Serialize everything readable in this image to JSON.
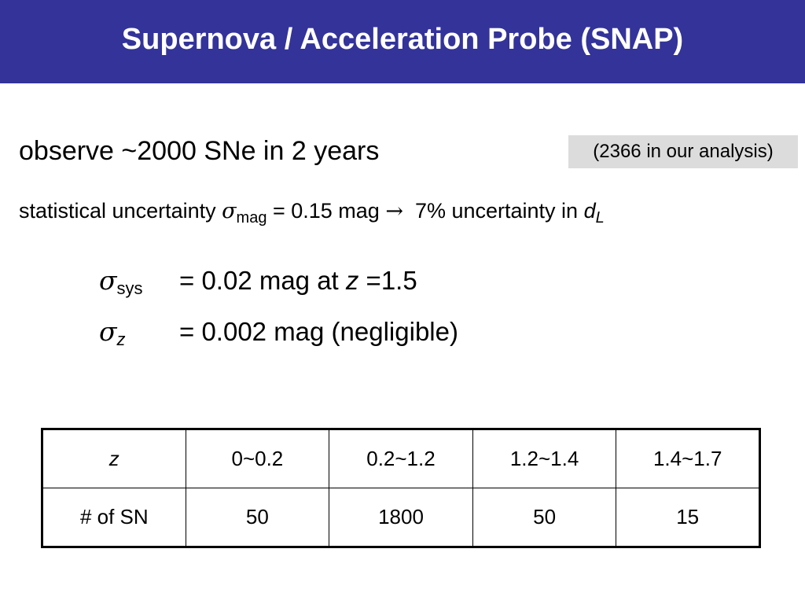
{
  "title": "Supernova / Acceleration Probe (SNAP)",
  "observe": {
    "text": "observe ~2000 SNe in 2 years",
    "note": "(2366 in our analysis)"
  },
  "statistical": {
    "prefix": "statistical uncertainty ",
    "symbol": "σ",
    "subscript": "mag",
    "middle": " = 0.15 mag ",
    "arrow": "→",
    "suffix": "  7% uncertainty in ",
    "d": "d",
    "d_sub": "L"
  },
  "sigma_sys": {
    "symbol": "σ",
    "subscript": "sys",
    "value_prefix": "= 0.02 mag at ",
    "z": "z",
    "value_suffix": " =1.5"
  },
  "sigma_z": {
    "symbol": "σ",
    "subscript": "z",
    "value": "= 0.002 mag (negligible)"
  },
  "table": {
    "header": [
      "z",
      "0~0.2",
      "0.2~1.2",
      "1.2~1.4",
      "1.4~1.7"
    ],
    "row": [
      "# of SN",
      "50",
      "1800",
      "50",
      "15"
    ]
  },
  "colors": {
    "title_bar": "#333399",
    "note_box": "#dcdcdc"
  }
}
